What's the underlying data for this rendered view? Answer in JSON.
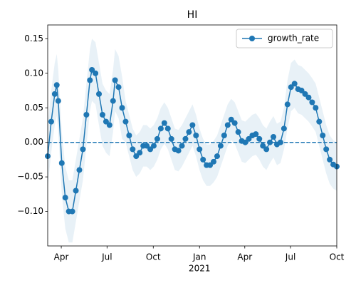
{
  "chart_data": {
    "type": "line",
    "title": "HI",
    "x": [
      "2020-03-05",
      "2020-03-12",
      "2020-03-19",
      "2020-03-23",
      "2020-03-26",
      "2020-04-02",
      "2020-04-09",
      "2020-04-16",
      "2020-04-23",
      "2020-04-30",
      "2020-05-07",
      "2020-05-14",
      "2020-05-21",
      "2020-05-28",
      "2020-06-01",
      "2020-06-08",
      "2020-06-15",
      "2020-06-22",
      "2020-06-29",
      "2020-07-06",
      "2020-07-13",
      "2020-07-17",
      "2020-07-24",
      "2020-07-31",
      "2020-08-07",
      "2020-08-14",
      "2020-08-21",
      "2020-08-28",
      "2020-09-04",
      "2020-09-11",
      "2020-09-18",
      "2020-09-25",
      "2020-10-02",
      "2020-10-09",
      "2020-10-16",
      "2020-10-23",
      "2020-10-30",
      "2020-11-06",
      "2020-11-13",
      "2020-11-20",
      "2020-11-27",
      "2020-12-04",
      "2020-12-11",
      "2020-12-18",
      "2020-12-25",
      "2021-01-01",
      "2021-01-08",
      "2021-01-15",
      "2021-01-22",
      "2021-01-29",
      "2021-02-05",
      "2021-02-12",
      "2021-02-19",
      "2021-02-26",
      "2021-03-05",
      "2021-03-12",
      "2021-03-19",
      "2021-03-26",
      "2021-04-02",
      "2021-04-09",
      "2021-04-16",
      "2021-04-23",
      "2021-04-30",
      "2021-05-07",
      "2021-05-14",
      "2021-05-21",
      "2021-05-28",
      "2021-06-04",
      "2021-06-11",
      "2021-06-18",
      "2021-06-25",
      "2021-07-02",
      "2021-07-09",
      "2021-07-16",
      "2021-07-23",
      "2021-07-30",
      "2021-08-06",
      "2021-08-13",
      "2021-08-20",
      "2021-08-27",
      "2021-09-03",
      "2021-09-10",
      "2021-09-17",
      "2021-09-24",
      "2021-10-01"
    ],
    "series": [
      {
        "name": "growth_rate",
        "color": "#1f77b4",
        "values": [
          -0.02,
          0.03,
          0.07,
          0.083,
          0.06,
          -0.03,
          -0.08,
          -0.1,
          -0.1,
          -0.07,
          -0.04,
          -0.01,
          0.04,
          0.09,
          0.105,
          0.1,
          0.07,
          0.04,
          0.03,
          0.025,
          0.06,
          0.09,
          0.08,
          0.05,
          0.03,
          0.01,
          -0.01,
          -0.02,
          -0.015,
          -0.005,
          -0.005,
          -0.01,
          -0.005,
          0.005,
          0.02,
          0.028,
          0.02,
          0.005,
          -0.01,
          -0.012,
          -0.005,
          0.005,
          0.015,
          0.025,
          0.01,
          -0.01,
          -0.025,
          -0.033,
          -0.033,
          -0.028,
          -0.02,
          -0.005,
          0.01,
          0.025,
          0.033,
          0.028,
          0.015,
          0.002,
          0.0,
          0.005,
          0.01,
          0.012,
          0.005,
          -0.005,
          -0.01,
          0.0,
          0.008,
          -0.003,
          0.0,
          0.02,
          0.055,
          0.08,
          0.085,
          0.077,
          0.075,
          0.07,
          0.065,
          0.058,
          0.05,
          0.03,
          0.01,
          -0.01,
          -0.025,
          -0.032,
          -0.035
        ]
      }
    ],
    "band": {
      "upper": [
        0.025,
        0.075,
        0.115,
        0.128,
        0.105,
        0.015,
        -0.035,
        -0.055,
        -0.055,
        -0.025,
        0.005,
        0.035,
        0.085,
        0.135,
        0.15,
        0.145,
        0.115,
        0.085,
        0.075,
        0.07,
        0.105,
        0.135,
        0.125,
        0.095,
        0.06,
        0.04,
        0.02,
        0.01,
        0.015,
        0.025,
        0.025,
        0.02,
        0.025,
        0.035,
        0.05,
        0.058,
        0.05,
        0.035,
        0.02,
        0.018,
        0.025,
        0.035,
        0.045,
        0.055,
        0.04,
        0.02,
        0.005,
        -0.003,
        -0.003,
        0.002,
        0.01,
        0.025,
        0.04,
        0.055,
        0.063,
        0.058,
        0.045,
        0.032,
        0.03,
        0.035,
        0.04,
        0.042,
        0.035,
        0.025,
        0.02,
        0.03,
        0.038,
        0.027,
        0.03,
        0.05,
        0.09,
        0.115,
        0.12,
        0.112,
        0.11,
        0.105,
        0.1,
        0.093,
        0.085,
        0.065,
        0.045,
        0.025,
        0.01,
        0.003,
        0.0
      ],
      "lower": [
        -0.065,
        -0.015,
        0.025,
        0.038,
        0.015,
        -0.075,
        -0.125,
        -0.145,
        -0.145,
        -0.115,
        -0.085,
        -0.055,
        -0.005,
        0.045,
        0.06,
        0.055,
        0.025,
        -0.005,
        -0.015,
        -0.02,
        0.015,
        0.045,
        0.035,
        0.005,
        0.0,
        -0.02,
        -0.04,
        -0.05,
        -0.045,
        -0.035,
        -0.035,
        -0.04,
        -0.035,
        -0.025,
        -0.01,
        -0.002,
        -0.01,
        -0.025,
        -0.04,
        -0.042,
        -0.035,
        -0.025,
        -0.015,
        -0.005,
        -0.02,
        -0.04,
        -0.055,
        -0.063,
        -0.063,
        -0.058,
        -0.05,
        -0.035,
        -0.02,
        -0.005,
        0.003,
        -0.002,
        -0.015,
        -0.028,
        -0.03,
        -0.025,
        -0.02,
        -0.018,
        -0.025,
        -0.035,
        -0.04,
        -0.03,
        -0.022,
        -0.033,
        -0.03,
        -0.01,
        0.02,
        0.045,
        0.05,
        0.042,
        0.04,
        0.035,
        0.03,
        0.023,
        0.015,
        -0.005,
        -0.025,
        -0.045,
        -0.06,
        -0.067,
        -0.07
      ]
    },
    "hline": 0,
    "xlim": [
      "2020-03-05",
      "2021-10-01"
    ],
    "xticks": [
      {
        "value": "2020-04-01",
        "label": "Apr"
      },
      {
        "value": "2020-07-01",
        "label": "Jul"
      },
      {
        "value": "2020-10-01",
        "label": "Oct"
      },
      {
        "value": "2021-01-01",
        "label": "Jan"
      },
      {
        "value": "2021-04-01",
        "label": "Apr"
      },
      {
        "value": "2021-07-01",
        "label": "Jul"
      },
      {
        "value": "2021-10-01",
        "label": "Oct"
      }
    ],
    "year_label": "2021",
    "ylim": [
      -0.15,
      0.17
    ],
    "yticks": [
      {
        "value": -0.1,
        "label": "−0.10"
      },
      {
        "value": -0.05,
        "label": "−0.05"
      },
      {
        "value": 0,
        "label": "0.00"
      },
      {
        "value": 0.05,
        "label": "0.05"
      },
      {
        "value": 0.1,
        "label": "0.10"
      },
      {
        "value": 0.15,
        "label": "0.15"
      }
    ],
    "legend": "upper right"
  }
}
